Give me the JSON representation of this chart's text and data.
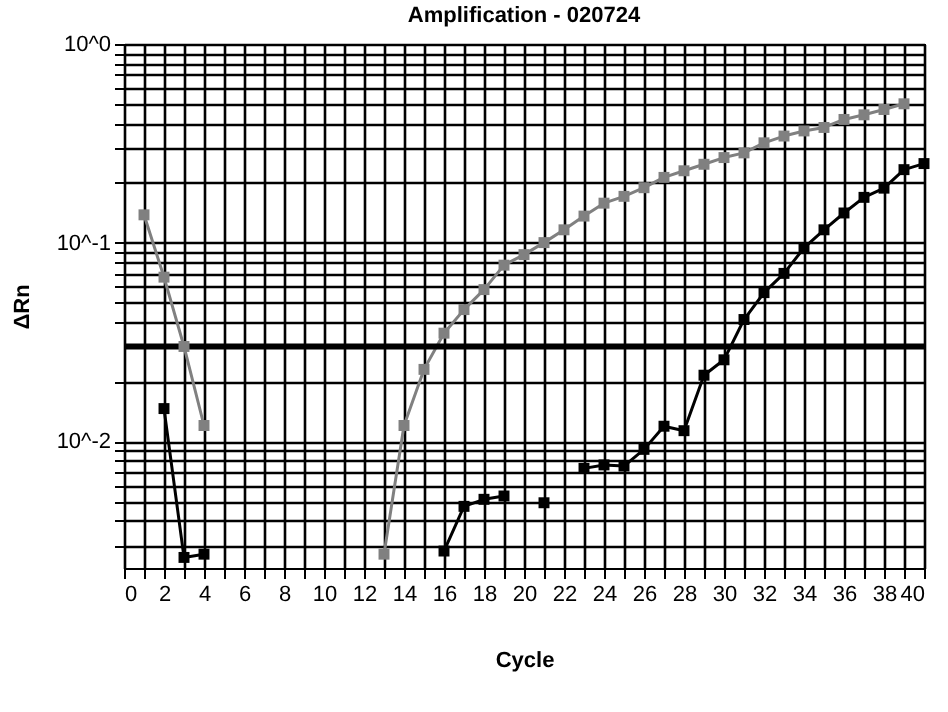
{
  "chart_data": {
    "type": "line",
    "title": "Amplification - 020724",
    "xlabel": "Cycle",
    "ylabel": "ΔRn",
    "x": [
      1,
      2,
      3,
      4,
      5,
      6,
      7,
      8,
      9,
      10,
      11,
      12,
      13,
      14,
      15,
      16,
      17,
      18,
      19,
      20,
      21,
      22,
      23,
      24,
      25,
      26,
      27,
      28,
      29,
      30,
      31,
      32,
      33,
      34,
      35,
      36,
      37,
      38,
      39,
      40
    ],
    "series": [
      {
        "color": "#808080",
        "values": [
          0.138,
          0.067,
          0.03,
          0.012,
          null,
          null,
          null,
          null,
          null,
          null,
          null,
          null,
          0.0027,
          0.012,
          0.023,
          0.035,
          0.046,
          0.058,
          0.077,
          0.087,
          0.1,
          0.116,
          0.136,
          0.158,
          0.171,
          0.189,
          0.213,
          0.23,
          0.248,
          0.268,
          0.283,
          0.318,
          0.344,
          0.365,
          0.38,
          0.417,
          0.44,
          0.468,
          0.5,
          null
        ]
      },
      {
        "color": "#000000",
        "values": [
          null,
          0.0146,
          0.0026,
          0.0027,
          null,
          null,
          null,
          null,
          null,
          null,
          null,
          null,
          null,
          null,
          null,
          0.0028,
          0.0047,
          0.0051,
          0.0053,
          null,
          0.0049,
          null,
          0.0073,
          0.0076,
          0.0075,
          0.0091,
          0.0119,
          0.0113,
          0.0215,
          0.0257,
          0.041,
          0.056,
          0.07,
          0.094,
          0.116,
          0.141,
          0.169,
          0.188,
          0.233,
          0.25
        ]
      }
    ],
    "log": "y",
    "xlim": [
      0,
      40
    ],
    "ylim": [
      0.0023,
      1
    ],
    "xticks": [
      0,
      {
        "value": 1,
        "label": null
      },
      2,
      {
        "value": 3,
        "label": null
      },
      4,
      {
        "value": 5,
        "label": null
      },
      6,
      {
        "value": 7,
        "label": null
      },
      8,
      {
        "value": 9,
        "label": null
      },
      10,
      {
        "value": 11,
        "label": null
      },
      12,
      {
        "value": 13,
        "label": null
      },
      14,
      {
        "value": 15,
        "label": null
      },
      16,
      {
        "value": 17,
        "label": null
      },
      18,
      {
        "value": 19,
        "label": null
      },
      20,
      {
        "value": 21,
        "label": null
      },
      22,
      {
        "value": 23,
        "label": null
      },
      24,
      {
        "value": 25,
        "label": null
      },
      26,
      {
        "value": 27,
        "label": null
      },
      28,
      {
        "value": 29,
        "label": null
      },
      30,
      {
        "value": 31,
        "label": null
      },
      32,
      {
        "value": 33,
        "label": null
      },
      34,
      {
        "value": 35,
        "label": null
      },
      36,
      {
        "value": 37,
        "label": null
      },
      38,
      {
        "value": 39,
        "label": null
      },
      40
    ],
    "yticks": [
      {
        "value": 0.003,
        "label": null
      },
      {
        "value": 0.004,
        "label": null
      },
      {
        "value": 0.005,
        "label": null
      },
      {
        "value": 0.006,
        "label": null
      },
      {
        "value": 0.007,
        "label": null
      },
      {
        "value": 0.008,
        "label": null
      },
      {
        "value": 0.009,
        "label": null
      },
      {
        "value": 0.01,
        "label": "10^-2"
      },
      {
        "value": 0.02,
        "label": null
      },
      {
        "value": 0.04,
        "label": null
      },
      {
        "value": 0.05,
        "label": null
      },
      {
        "value": 0.06,
        "label": null
      },
      {
        "value": 0.07,
        "label": null
      },
      {
        "value": 0.08,
        "label": null
      },
      {
        "value": 0.09,
        "label": null
      },
      {
        "value": 0.1,
        "label": "10^-1"
      },
      {
        "value": 0.2,
        "label": null
      },
      {
        "value": 0.3,
        "label": null
      },
      {
        "value": 0.4,
        "label": null
      },
      {
        "value": 0.5,
        "label": null
      },
      {
        "value": 0.6,
        "label": null
      },
      {
        "value": 0.7,
        "label": null
      },
      {
        "value": 0.8,
        "label": null
      },
      {
        "value": 0.9,
        "label": null
      },
      {
        "value": 1,
        "label": "10^0"
      }
    ],
    "ref_lines": [
      {
        "axis": "y",
        "value": 0.03,
        "color": "#000000"
      }
    ],
    "grid": true,
    "marker": "square",
    "line_style": "solid"
  }
}
